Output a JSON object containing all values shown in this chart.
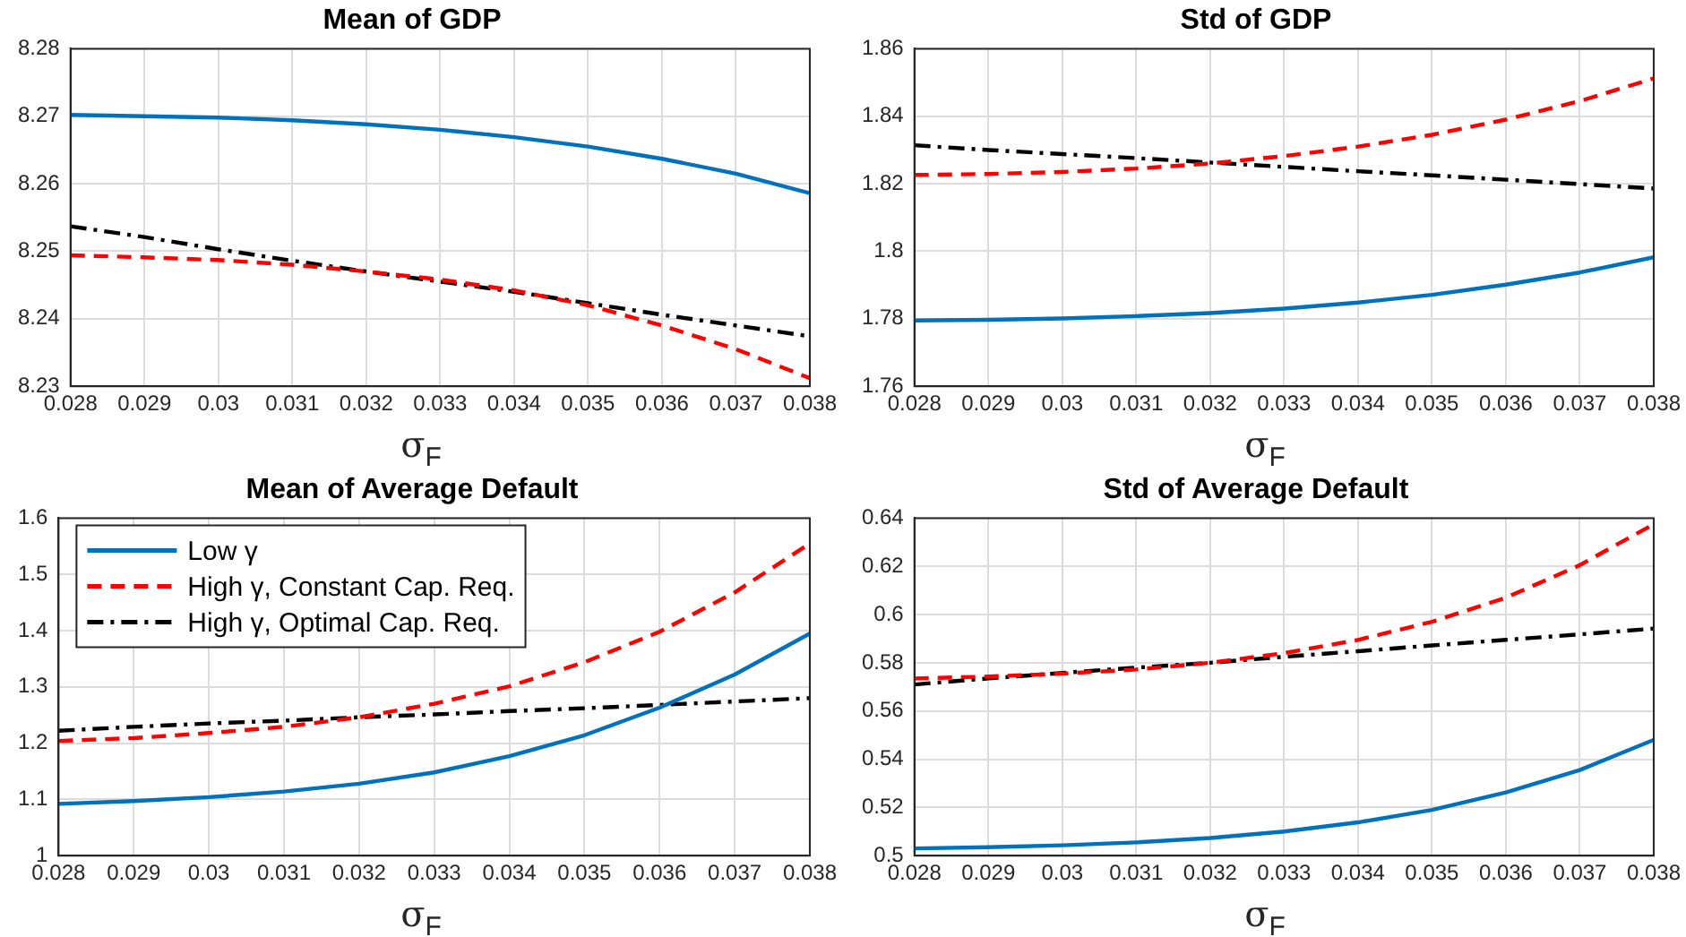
{
  "chart_data": [
    {
      "type": "line",
      "title": "Mean of GDP",
      "xlabel": "σ$_{F}$",
      "x": [
        0.028,
        0.029,
        0.03,
        0.031,
        0.032,
        0.033,
        0.034,
        0.035,
        0.036,
        0.037,
        0.038
      ],
      "xlim": [
        0.028,
        0.038
      ],
      "xticks": [
        0.028,
        0.029,
        0.03,
        0.031,
        0.032,
        0.033,
        0.034,
        0.035,
        0.036,
        0.037,
        0.038
      ],
      "ylim": [
        8.23,
        8.28
      ],
      "yticks": [
        8.23,
        8.24,
        8.25,
        8.26,
        8.27,
        8.28
      ],
      "grid": true,
      "marker": "none",
      "series": [
        {
          "color": "#0072bd",
          "line_style": "solid",
          "values": [
            8.2702,
            8.27,
            8.2698,
            8.2694,
            8.2688,
            8.268,
            8.2669,
            8.2655,
            8.2637,
            8.2615,
            8.2586
          ]
        },
        {
          "color": "#ff0000",
          "line_style": "dashed",
          "values": [
            8.2494,
            8.2491,
            8.2487,
            8.248,
            8.247,
            8.2458,
            8.2442,
            8.242,
            8.239,
            8.2355,
            8.2312
          ]
        },
        {
          "color": "#000000",
          "line_style": "dashdot",
          "values": [
            8.2537,
            8.2521,
            8.2503,
            8.2486,
            8.247,
            8.2455,
            8.244,
            8.2423,
            8.2406,
            8.239,
            8.2374
          ]
        }
      ]
    },
    {
      "type": "line",
      "title": "Std of GDP",
      "xlabel": "σ$_{F}$",
      "x": [
        0.028,
        0.029,
        0.03,
        0.031,
        0.032,
        0.033,
        0.034,
        0.035,
        0.036,
        0.037,
        0.038
      ],
      "xlim": [
        0.028,
        0.038
      ],
      "xticks": [
        0.028,
        0.029,
        0.03,
        0.031,
        0.032,
        0.033,
        0.034,
        0.035,
        0.036,
        0.037,
        0.038
      ],
      "ylim": [
        1.76,
        1.86
      ],
      "yticks": [
        1.76,
        1.78,
        1.8,
        1.82,
        1.84,
        1.86
      ],
      "grid": true,
      "marker": "none",
      "series": [
        {
          "color": "#0072bd",
          "line_style": "solid",
          "values": [
            1.7795,
            1.7797,
            1.7801,
            1.7808,
            1.7817,
            1.783,
            1.7848,
            1.7871,
            1.7901,
            1.7937,
            1.7982
          ]
        },
        {
          "color": "#ff0000",
          "line_style": "dashed",
          "values": [
            1.8226,
            1.8229,
            1.8235,
            1.8245,
            1.826,
            1.8282,
            1.831,
            1.8345,
            1.839,
            1.8445,
            1.8512
          ]
        },
        {
          "color": "#000000",
          "line_style": "dashdot",
          "values": [
            1.8314,
            1.83,
            1.8288,
            1.8276,
            1.8263,
            1.825,
            1.8237,
            1.8225,
            1.8212,
            1.8199,
            1.8186
          ]
        }
      ]
    },
    {
      "type": "line",
      "title": "Mean of Average Default",
      "xlabel": "σ$_{F}$",
      "x": [
        0.028,
        0.029,
        0.03,
        0.031,
        0.032,
        0.033,
        0.034,
        0.035,
        0.036,
        0.037,
        0.038
      ],
      "xlim": [
        0.028,
        0.038
      ],
      "xticks": [
        0.028,
        0.029,
        0.03,
        0.031,
        0.032,
        0.033,
        0.034,
        0.035,
        0.036,
        0.037,
        0.038
      ],
      "ylim": [
        1,
        1.6
      ],
      "yticks": [
        1,
        1.1,
        1.2,
        1.3,
        1.4,
        1.5,
        1.6
      ],
      "grid": true,
      "marker": "none",
      "legend": "top left",
      "series": [
        {
          "name": "Low γ",
          "color": "#0072bd",
          "line_style": "solid",
          "values": [
            1.092,
            1.097,
            1.104,
            1.114,
            1.128,
            1.148,
            1.177,
            1.214,
            1.263,
            1.322,
            1.395
          ]
        },
        {
          "name": "High γ, Constant Cap. Req.",
          "color": "#ff0000",
          "line_style": "dashed",
          "values": [
            1.204,
            1.209,
            1.218,
            1.229,
            1.246,
            1.27,
            1.301,
            1.344,
            1.398,
            1.468,
            1.555
          ]
        },
        {
          "name": "High γ, Optimal Cap. Req.",
          "color": "#000000",
          "line_style": "dashdot",
          "values": [
            1.222,
            1.229,
            1.235,
            1.24,
            1.246,
            1.251,
            1.257,
            1.262,
            1.268,
            1.274,
            1.28
          ]
        }
      ]
    },
    {
      "type": "line",
      "title": "Std of Average Default",
      "xlabel": "σ$_{F}$",
      "x": [
        0.028,
        0.029,
        0.03,
        0.031,
        0.032,
        0.033,
        0.034,
        0.035,
        0.036,
        0.037,
        0.038
      ],
      "xlim": [
        0.028,
        0.038
      ],
      "xticks": [
        0.028,
        0.029,
        0.03,
        0.031,
        0.032,
        0.033,
        0.034,
        0.035,
        0.036,
        0.037,
        0.038
      ],
      "ylim": [
        0.5,
        0.64
      ],
      "yticks": [
        0.5,
        0.52,
        0.54,
        0.56,
        0.58,
        0.6,
        0.62,
        0.64
      ],
      "grid": true,
      "marker": "none",
      "series": [
        {
          "color": "#0072bd",
          "line_style": "solid",
          "values": [
            0.503,
            0.5035,
            0.5043,
            0.5055,
            0.5073,
            0.51,
            0.5138,
            0.519,
            0.5262,
            0.5355,
            0.548
          ]
        },
        {
          "color": "#ff0000",
          "line_style": "dashed",
          "values": [
            0.5735,
            0.5743,
            0.5755,
            0.5772,
            0.58,
            0.584,
            0.5895,
            0.597,
            0.607,
            0.6205,
            0.6375
          ]
        },
        {
          "color": "#000000",
          "line_style": "dashdot",
          "values": [
            0.571,
            0.5735,
            0.5758,
            0.578,
            0.58,
            0.5825,
            0.5848,
            0.5872,
            0.5895,
            0.5918,
            0.5942
          ]
        }
      ]
    }
  ]
}
